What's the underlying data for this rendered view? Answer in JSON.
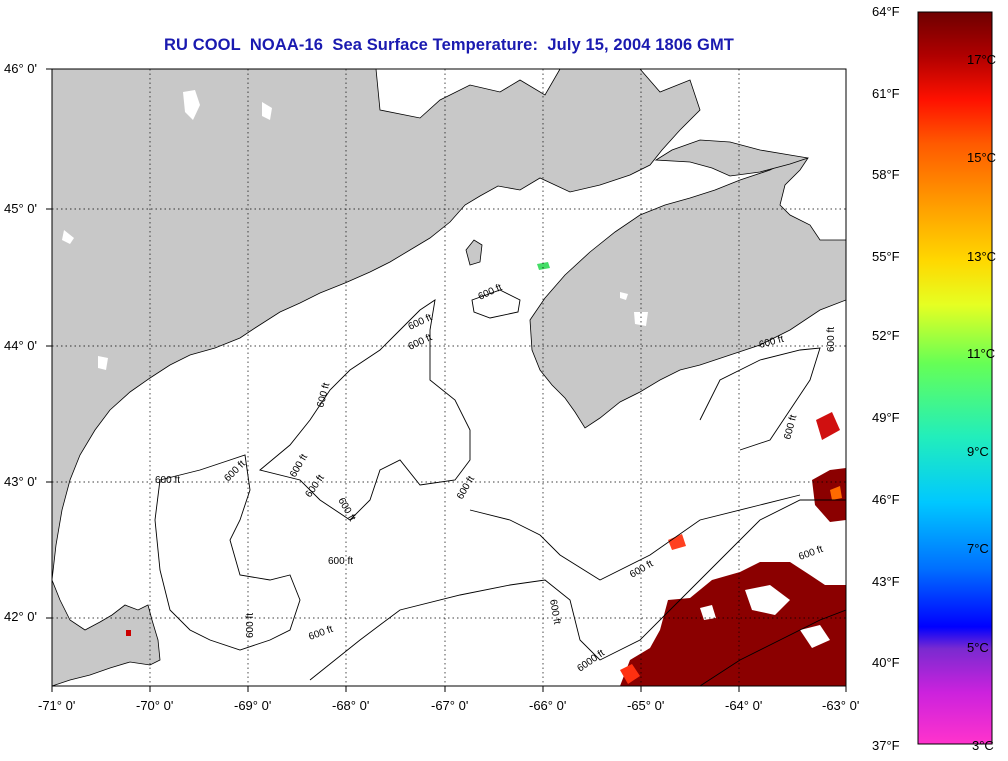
{
  "title": "RU COOL  NOAA-16  Sea Surface Temperature:  July 15, 2004 1806 GMT",
  "map": {
    "lon_range": [
      -71,
      -63
    ],
    "lat_range": [
      41.5,
      46
    ],
    "lon_ticks": [
      -71,
      -70,
      -69,
      -68,
      -67,
      -66,
      -65,
      -64,
      -63
    ],
    "lat_ticks": [
      42,
      43,
      44,
      45,
      46
    ],
    "lon_tick_labels": [
      "-71° 0'",
      "-70° 0'",
      "-69° 0'",
      "-68° 0'",
      "-67° 0'",
      "-66° 0'",
      "-65° 0'",
      "-64° 0'",
      "-63° 0'"
    ],
    "lat_tick_labels": [
      "42° 0'",
      "43° 0'",
      "44° 0'",
      "45° 0'",
      "46° 0'"
    ],
    "grid": "dotted",
    "land_color": "#c8c8c8",
    "contour_label": "600 ft",
    "contour_label_deep": "6000 ft"
  },
  "colorbar": {
    "fahrenheit_labels": [
      "64°F",
      "61°F",
      "58°F",
      "55°F",
      "52°F",
      "49°F",
      "46°F",
      "43°F",
      "40°F",
      "37°F"
    ],
    "celsius_labels": [
      "17°C",
      "15°C",
      "13°C",
      "11°C",
      "9°C",
      "7°C",
      "5°C",
      "3°C"
    ],
    "colors": [
      "#ff33cc",
      "#cc22dd",
      "#7a2ad0",
      "#0000ff",
      "#0070ff",
      "#00c8ff",
      "#22eebb",
      "#66ff55",
      "#e6ff22",
      "#ffd800",
      "#ff9a00",
      "#ff5a00",
      "#ff1100",
      "#b00000",
      "#6e0000"
    ]
  }
}
